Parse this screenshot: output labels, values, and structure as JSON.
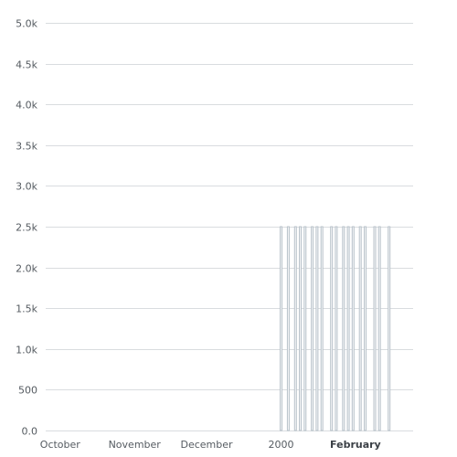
{
  "chart_data": {
    "type": "bar",
    "title": "",
    "xlabel": "",
    "ylabel": "",
    "ylim": [
      0,
      5000
    ],
    "yticks": [
      0,
      500,
      1000,
      1500,
      2000,
      2500,
      3000,
      3500,
      4000,
      4500,
      5000
    ],
    "ytick_labels": [
      "0.0",
      "500",
      "1.0k",
      "1.5k",
      "2.0k",
      "2.5k",
      "3.0k",
      "3.5k",
      "4.0k",
      "4.5k",
      "5.0k"
    ],
    "xlim": [
      "1999-09-25",
      "2000-02-25"
    ],
    "xticks": [
      {
        "date": "1999-10-01",
        "label": "October",
        "bold": false
      },
      {
        "date": "1999-11-01",
        "label": "November",
        "bold": false
      },
      {
        "date": "1999-12-01",
        "label": "December",
        "bold": false
      },
      {
        "date": "2000-01-01",
        "label": "2000",
        "bold": false
      },
      {
        "date": "2000-02-01",
        "label": "February",
        "bold": true
      }
    ],
    "grid": true,
    "colors": {
      "bar_fill": "#f6f7f8",
      "bar_stroke": "#b8c2ca",
      "grid": "#d9dcdf",
      "text": "#555b61"
    },
    "series": [
      {
        "x": [
          "2000-01-01",
          "2000-01-04",
          "2000-01-07",
          "2000-01-09",
          "2000-01-11",
          "2000-01-14",
          "2000-01-16",
          "2000-01-18",
          "2000-01-22",
          "2000-01-24",
          "2000-01-27",
          "2000-01-29",
          "2000-01-31",
          "2000-02-03",
          "2000-02-05",
          "2000-02-09",
          "2000-02-11",
          "2000-02-15"
        ],
        "values": [
          2500,
          2500,
          2500,
          2500,
          2500,
          2500,
          2500,
          2500,
          2500,
          2500,
          2500,
          2500,
          2500,
          2500,
          2500,
          2500,
          2500,
          2500
        ]
      }
    ]
  }
}
